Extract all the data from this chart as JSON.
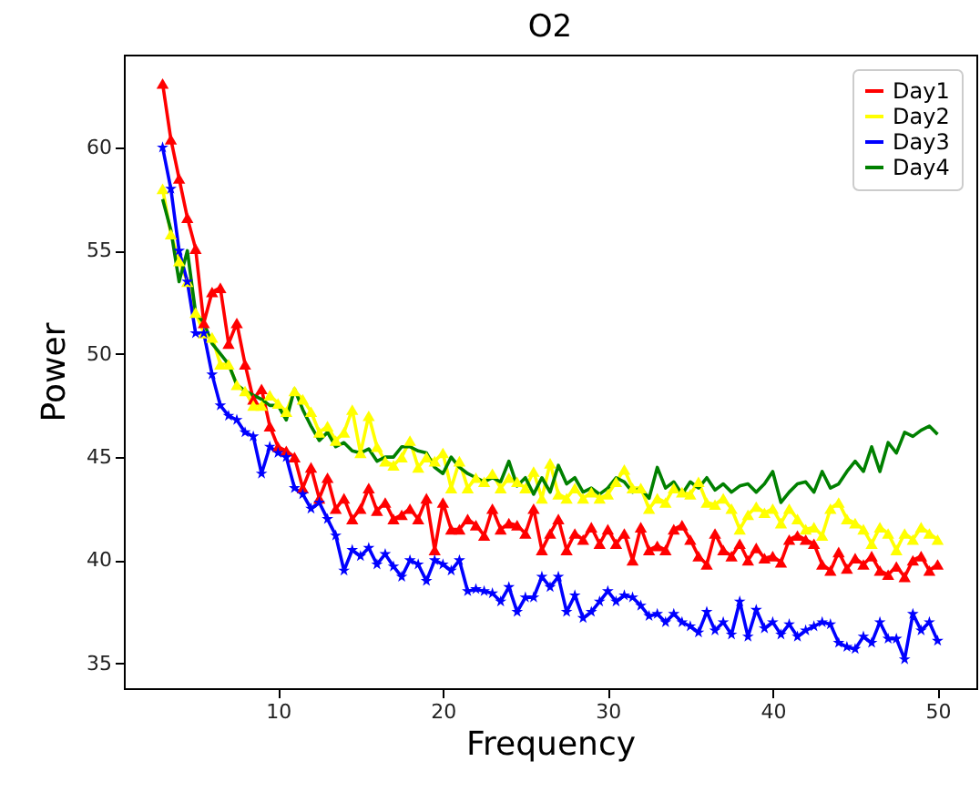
{
  "chart_data": {
    "type": "line",
    "title": "O2",
    "xlabel": "Frequency",
    "ylabel": "Power",
    "x": [
      3,
      3.5,
      4,
      4.5,
      5,
      5.5,
      6,
      6.5,
      7,
      7.5,
      8,
      8.5,
      9,
      9.5,
      10,
      10.5,
      11,
      11.5,
      12,
      12.5,
      13,
      13.5,
      14,
      14.5,
      15,
      15.5,
      16,
      16.5,
      17,
      17.5,
      18,
      18.5,
      19,
      19.5,
      20,
      20.5,
      21,
      21.5,
      22,
      22.5,
      23,
      23.5,
      24,
      24.5,
      25,
      25.5,
      26,
      26.5,
      27,
      27.5,
      28,
      28.5,
      29,
      29.5,
      30,
      30.5,
      31,
      31.5,
      32,
      32.5,
      33,
      33.5,
      34,
      34.5,
      35,
      35.5,
      36,
      36.5,
      37,
      37.5,
      38,
      38.5,
      39,
      39.5,
      40,
      40.5,
      41,
      41.5,
      42,
      42.5,
      43,
      43.5,
      44,
      44.5,
      45,
      45.5,
      46,
      46.5,
      47,
      47.5,
      48,
      48.5,
      49,
      49.5,
      50
    ],
    "series": [
      {
        "name": "Day1",
        "color": "#ff0000",
        "marker": "triangle",
        "values": [
          63.1,
          60.4,
          58.5,
          56.6,
          55.1,
          51.5,
          53.0,
          53.2,
          50.5,
          51.5,
          49.5,
          47.8,
          48.3,
          46.5,
          45.5,
          45.3,
          45.0,
          43.5,
          44.5,
          43.0,
          44.0,
          42.5,
          43.0,
          42.0,
          42.5,
          43.5,
          42.4,
          42.8,
          42.0,
          42.2,
          42.5,
          42.0,
          43.0,
          40.5,
          42.8,
          41.5,
          41.5,
          42.0,
          41.7,
          41.2,
          42.5,
          41.5,
          41.8,
          41.7,
          41.3,
          42.5,
          40.5,
          41.3,
          42.0,
          40.5,
          41.3,
          41.0,
          41.6,
          40.8,
          41.5,
          40.8,
          41.3,
          40.0,
          41.6,
          40.5,
          40.7,
          40.5,
          41.5,
          41.7,
          41.0,
          40.2,
          39.8,
          41.3,
          40.5,
          40.2,
          40.8,
          40.0,
          40.6,
          40.1,
          40.2,
          39.9,
          41.0,
          41.2,
          41.0,
          40.8,
          39.8,
          39.5,
          40.4,
          39.6,
          40.1,
          39.8,
          40.2,
          39.5,
          39.3,
          39.7,
          39.2,
          40.0,
          40.2,
          39.5,
          39.8
        ]
      },
      {
        "name": "Day2",
        "color": "#ffff00",
        "marker": "triangle",
        "values": [
          58.0,
          55.8,
          54.5,
          53.5,
          52.0,
          51.0,
          50.8,
          49.5,
          49.5,
          48.5,
          48.2,
          47.5,
          47.5,
          48.0,
          47.6,
          47.2,
          48.2,
          47.8,
          47.2,
          46.2,
          46.5,
          45.8,
          46.2,
          47.3,
          45.2,
          47.0,
          45.5,
          44.8,
          44.6,
          45.0,
          45.8,
          44.5,
          45.0,
          44.8,
          45.2,
          43.5,
          44.8,
          43.5,
          44.0,
          43.8,
          44.2,
          43.5,
          44.0,
          43.8,
          43.5,
          44.3,
          43.0,
          44.7,
          43.2,
          43.0,
          43.5,
          43.0,
          43.3,
          43.0,
          43.2,
          43.8,
          44.4,
          43.5,
          43.5,
          42.5,
          43.0,
          42.8,
          43.5,
          43.3,
          43.2,
          43.8,
          42.8,
          42.7,
          43.0,
          42.5,
          41.5,
          42.2,
          42.6,
          42.3,
          42.5,
          41.8,
          42.5,
          42.0,
          41.5,
          41.6,
          41.2,
          42.5,
          42.8,
          42.0,
          41.8,
          41.5,
          40.8,
          41.6,
          41.3,
          40.5,
          41.3,
          41.0,
          41.6,
          41.3,
          41.0
        ]
      },
      {
        "name": "Day3",
        "color": "#0000ff",
        "marker": "star",
        "values": [
          60.0,
          58.0,
          55.0,
          53.5,
          51.0,
          51.0,
          49.0,
          47.5,
          47.0,
          46.8,
          46.2,
          46.0,
          44.2,
          45.5,
          45.2,
          45.0,
          43.5,
          43.2,
          42.5,
          42.8,
          42.0,
          41.2,
          39.5,
          40.5,
          40.2,
          40.6,
          39.8,
          40.3,
          39.7,
          39.2,
          40.0,
          39.8,
          39.0,
          40.0,
          39.8,
          39.5,
          40.0,
          38.5,
          38.6,
          38.5,
          38.4,
          38.0,
          38.7,
          37.5,
          38.2,
          38.2,
          39.2,
          38.7,
          39.2,
          37.5,
          38.3,
          37.2,
          37.5,
          38.0,
          38.5,
          38.0,
          38.3,
          38.2,
          37.8,
          37.3,
          37.4,
          37.0,
          37.4,
          37.0,
          36.8,
          36.5,
          37.5,
          36.6,
          37.0,
          36.4,
          38.0,
          36.3,
          37.6,
          36.7,
          37.0,
          36.4,
          36.9,
          36.3,
          36.6,
          36.8,
          37.0,
          36.9,
          36.0,
          35.8,
          35.7,
          36.3,
          36.0,
          37.0,
          36.2,
          36.2,
          35.2,
          37.4,
          36.6,
          37.0,
          36.1
        ]
      },
      {
        "name": "Day4",
        "color": "#008000",
        "marker": "none",
        "values": [
          57.5,
          56.0,
          53.5,
          55.0,
          52.0,
          51.5,
          50.5,
          50.0,
          49.5,
          48.5,
          48.2,
          48.0,
          47.8,
          47.5,
          47.5,
          46.8,
          48.3,
          47.3,
          46.5,
          45.8,
          46.2,
          45.5,
          45.7,
          45.3,
          45.2,
          45.4,
          44.8,
          45.0,
          45.0,
          45.5,
          45.5,
          45.3,
          45.2,
          44.5,
          44.2,
          45.0,
          44.5,
          44.2,
          44.0,
          43.8,
          44.0,
          43.8,
          44.8,
          43.6,
          44.0,
          43.2,
          44.0,
          43.3,
          44.6,
          43.7,
          44.0,
          43.3,
          43.5,
          43.2,
          43.5,
          44.0,
          43.8,
          43.3,
          43.5,
          43.0,
          44.5,
          43.5,
          43.8,
          43.2,
          43.8,
          43.5,
          44.0,
          43.4,
          43.7,
          43.3,
          43.6,
          43.7,
          43.3,
          43.7,
          44.3,
          42.8,
          43.3,
          43.7,
          43.8,
          43.3,
          44.3,
          43.5,
          43.7,
          44.3,
          44.8,
          44.3,
          45.5,
          44.3,
          45.7,
          45.2,
          46.2,
          46.0,
          46.3,
          46.5,
          46.1
        ]
      }
    ],
    "xlim": [
      0.65,
      52.35
    ],
    "ylim": [
      33.8,
      64.5
    ],
    "xticks": [
      10,
      20,
      30,
      40,
      50
    ],
    "yticks": [
      35,
      40,
      45,
      50,
      55,
      60
    ],
    "legend": "top right",
    "line_style": "solid"
  }
}
